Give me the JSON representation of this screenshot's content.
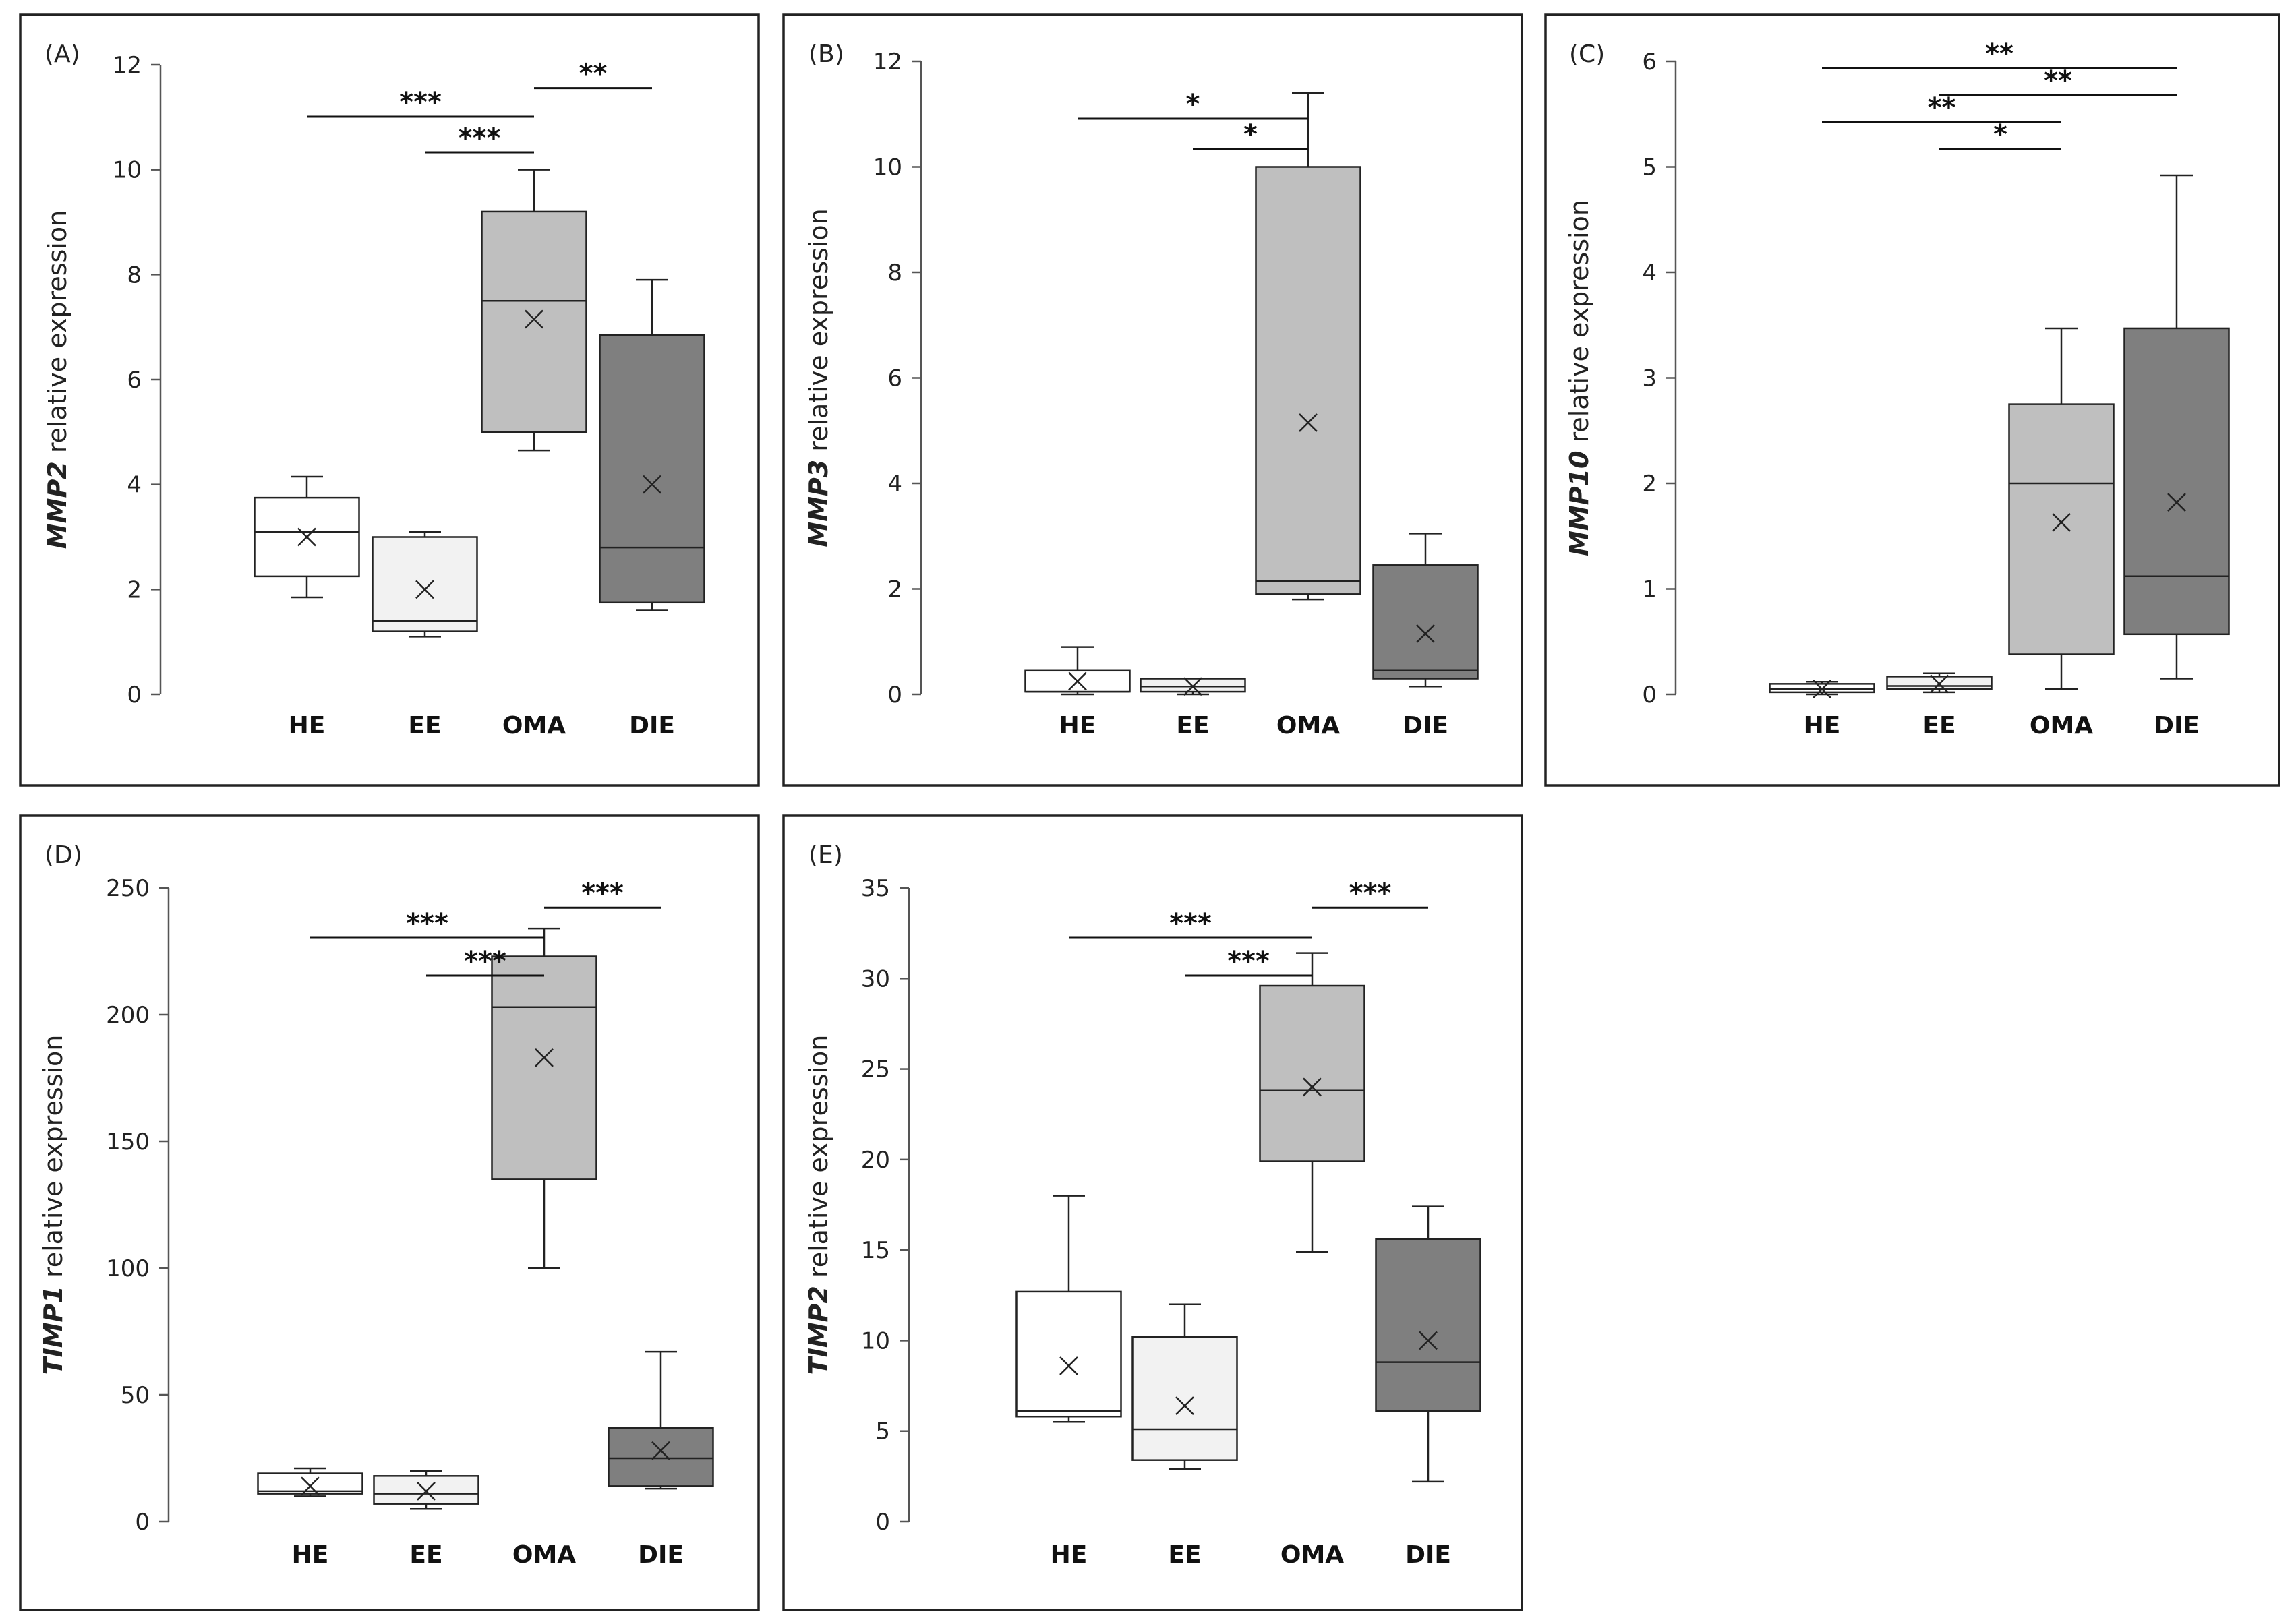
{
  "figure": {
    "colors": {
      "HE": "#ffffff",
      "EE": "#f2f2f2",
      "OMA": "#bfbfbf",
      "DIE": "#7f7f7f"
    }
  },
  "chart_data": [
    {
      "type": "box",
      "panel": "(A)",
      "gene": "MMP2",
      "ylabel_suffix": " relative expression",
      "ylim": [
        0,
        12
      ],
      "yticks": [
        0,
        2,
        4,
        6,
        8,
        10,
        12
      ],
      "categories": [
        "HE",
        "EE",
        "OMA",
        "DIE"
      ],
      "boxes": [
        {
          "group": "HE",
          "min": 1.85,
          "q1": 2.25,
          "median": 3.1,
          "q3": 3.75,
          "max": 4.15,
          "mean": 3.0
        },
        {
          "group": "EE",
          "min": 1.1,
          "q1": 1.2,
          "median": 1.4,
          "q3": 3.0,
          "max": 3.1,
          "mean": 2.0
        },
        {
          "group": "OMA",
          "min": 4.65,
          "q1": 5.0,
          "median": 7.5,
          "q3": 9.2,
          "max": 10.0,
          "mean": 7.15
        },
        {
          "group": "DIE",
          "min": 1.6,
          "q1": 1.75,
          "median": 2.8,
          "q3": 6.85,
          "max": 7.9,
          "mean": 4.0
        }
      ],
      "significance": [
        {
          "from": "HE",
          "to": "OMA",
          "label": "***",
          "level": 1
        },
        {
          "from": "EE",
          "to": "OMA",
          "label": "***",
          "level": 0
        },
        {
          "from": "OMA",
          "to": "DIE",
          "label": "**",
          "level": 2
        }
      ]
    },
    {
      "type": "box",
      "panel": "(B)",
      "gene": "MMP3",
      "ylabel_suffix": " relative expression",
      "ylim": [
        0,
        12
      ],
      "yticks": [
        0,
        2,
        4,
        6,
        8,
        10,
        12
      ],
      "categories": [
        "HE",
        "EE",
        "OMA",
        "DIE"
      ],
      "boxes": [
        {
          "group": "HE",
          "min": 0.0,
          "q1": 0.05,
          "median": 0.05,
          "q3": 0.45,
          "max": 0.9,
          "mean": 0.25
        },
        {
          "group": "EE",
          "min": 0.0,
          "q1": 0.05,
          "median": 0.15,
          "q3": 0.3,
          "max": 0.3,
          "mean": 0.15
        },
        {
          "group": "OMA",
          "min": 1.8,
          "q1": 1.9,
          "median": 2.15,
          "q3": 10.0,
          "max": 11.4,
          "mean": 5.15
        },
        {
          "group": "DIE",
          "min": 0.15,
          "q1": 0.3,
          "median": 0.45,
          "q3": 2.45,
          "max": 3.05,
          "mean": 1.15
        }
      ],
      "significance": [
        {
          "from": "HE",
          "to": "OMA",
          "label": "*",
          "level": 1
        },
        {
          "from": "EE",
          "to": "OMA",
          "label": "*",
          "level": 0
        }
      ]
    },
    {
      "type": "box",
      "panel": "(C)",
      "gene": "MMP10",
      "ylabel_suffix": " relative expression",
      "ylim": [
        0,
        6
      ],
      "yticks": [
        0,
        1,
        2,
        3,
        4,
        5,
        6
      ],
      "categories": [
        "HE",
        "EE",
        "OMA",
        "DIE"
      ],
      "boxes": [
        {
          "group": "HE",
          "min": 0.0,
          "q1": 0.02,
          "median": 0.05,
          "q3": 0.1,
          "max": 0.12,
          "mean": 0.05
        },
        {
          "group": "EE",
          "min": 0.02,
          "q1": 0.05,
          "median": 0.08,
          "q3": 0.17,
          "max": 0.2,
          "mean": 0.1
        },
        {
          "group": "OMA",
          "min": 0.05,
          "q1": 0.38,
          "median": 2.0,
          "q3": 2.75,
          "max": 3.47,
          "mean": 1.63
        },
        {
          "group": "DIE",
          "min": 0.15,
          "q1": 0.57,
          "median": 1.12,
          "q3": 3.47,
          "max": 4.92,
          "mean": 1.82
        }
      ],
      "significance": [
        {
          "from": "HE",
          "to": "DIE",
          "label": "**",
          "level": 3
        },
        {
          "from": "EE",
          "to": "DIE",
          "label": "**",
          "level": 2
        },
        {
          "from": "HE",
          "to": "OMA",
          "label": "**",
          "level": 1
        },
        {
          "from": "EE",
          "to": "OMA",
          "label": "*",
          "level": 0
        }
      ]
    },
    {
      "type": "box",
      "panel": "(D)",
      "gene": "TIMP1",
      "ylabel_suffix": " relative expression",
      "ylim": [
        0,
        250
      ],
      "yticks": [
        0,
        50,
        100,
        150,
        200,
        250
      ],
      "categories": [
        "HE",
        "EE",
        "OMA",
        "DIE"
      ],
      "boxes": [
        {
          "group": "HE",
          "min": 10,
          "q1": 11,
          "median": 12,
          "q3": 19,
          "max": 21,
          "mean": 14
        },
        {
          "group": "EE",
          "min": 5,
          "q1": 7,
          "median": 11,
          "q3": 18,
          "max": 20,
          "mean": 12
        },
        {
          "group": "OMA",
          "min": 100,
          "q1": 135,
          "median": 203,
          "q3": 223,
          "max": 234,
          "mean": 183
        },
        {
          "group": "DIE",
          "min": 13,
          "q1": 14,
          "median": 25,
          "q3": 37,
          "max": 67,
          "mean": 28
        }
      ],
      "significance": [
        {
          "from": "HE",
          "to": "OMA",
          "label": "***",
          "level": 1
        },
        {
          "from": "EE",
          "to": "OMA",
          "label": "***",
          "level": 0
        },
        {
          "from": "OMA",
          "to": "DIE",
          "label": "***",
          "level": 2
        }
      ]
    },
    {
      "type": "box",
      "panel": "(E)",
      "gene": "TIMP2",
      "ylabel_suffix": " relative expression",
      "ylim": [
        0,
        35
      ],
      "yticks": [
        0,
        5,
        10,
        15,
        20,
        25,
        30,
        35
      ],
      "categories": [
        "HE",
        "EE",
        "OMA",
        "DIE"
      ],
      "boxes": [
        {
          "group": "HE",
          "min": 5.5,
          "q1": 5.8,
          "median": 6.1,
          "q3": 12.7,
          "max": 18.0,
          "mean": 8.6
        },
        {
          "group": "EE",
          "min": 2.9,
          "q1": 3.4,
          "median": 5.1,
          "q3": 10.2,
          "max": 12.0,
          "mean": 6.4
        },
        {
          "group": "OMA",
          "min": 14.9,
          "q1": 19.9,
          "median": 23.8,
          "q3": 29.6,
          "max": 31.4,
          "mean": 24.0
        },
        {
          "group": "DIE",
          "min": 2.2,
          "q1": 6.1,
          "median": 8.8,
          "q3": 15.6,
          "max": 17.4,
          "mean": 10.0
        }
      ],
      "significance": [
        {
          "from": "HE",
          "to": "OMA",
          "label": "***",
          "level": 1
        },
        {
          "from": "EE",
          "to": "OMA",
          "label": "***",
          "level": 0
        },
        {
          "from": "OMA",
          "to": "DIE",
          "label": "***",
          "level": 2
        }
      ]
    }
  ]
}
